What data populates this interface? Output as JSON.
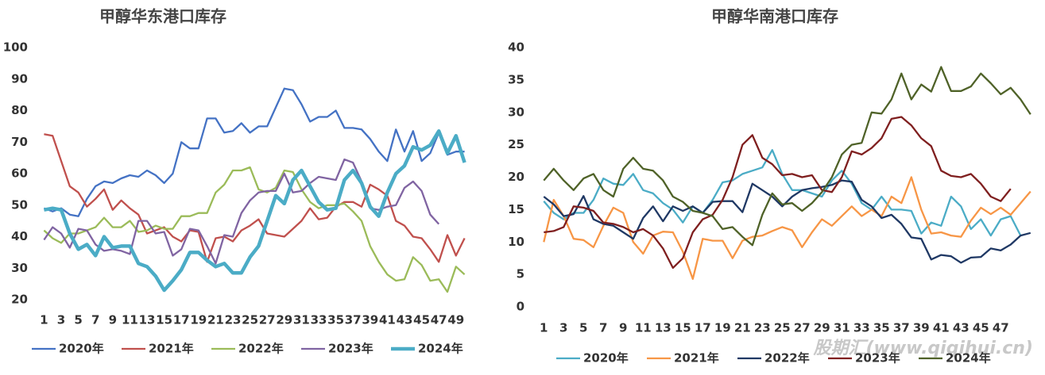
{
  "chart_data": [
    {
      "type": "line",
      "title": "甲醇华东港口库存",
      "x": [
        1,
        2,
        3,
        4,
        5,
        6,
        7,
        8,
        9,
        10,
        11,
        12,
        13,
        14,
        15,
        16,
        17,
        18,
        19,
        20,
        21,
        22,
        23,
        24,
        25,
        26,
        27,
        28,
        29,
        30,
        31,
        32,
        33,
        34,
        35,
        36,
        37,
        38,
        39,
        40,
        41,
        42,
        43,
        44,
        45,
        46,
        47,
        48,
        49,
        50
      ],
      "xlim": [
        0.5,
        50.5
      ],
      "xticks": [
        1,
        3,
        5,
        7,
        9,
        11,
        13,
        15,
        17,
        19,
        21,
        23,
        25,
        27,
        29,
        31,
        33,
        35,
        37,
        39,
        41,
        43,
        45,
        47,
        49
      ],
      "ylim": [
        20,
        100
      ],
      "yticks": [
        20,
        30,
        40,
        50,
        60,
        70,
        80,
        90,
        100
      ],
      "grid": false,
      "legend": "bottom",
      "series": [
        {
          "name": "2020年",
          "color": "#4472c4",
          "values": [
            49,
            48,
            49,
            47,
            46.5,
            52,
            56,
            57.5,
            57,
            58.5,
            59.5,
            59,
            61,
            59.5,
            57,
            60,
            70,
            68,
            68,
            77.5,
            77.5,
            73,
            73.5,
            76,
            73,
            75,
            75,
            81,
            87,
            86.5,
            82,
            76.5,
            78,
            78,
            80,
            74.5,
            74.5,
            74,
            71,
            67,
            64,
            74,
            67,
            73.5,
            64,
            66.5,
            73,
            66,
            67,
            67
          ]
        },
        {
          "name": "2021年",
          "color": "#c0504d",
          "values": [
            72.5,
            72,
            64,
            56,
            54,
            49.5,
            52,
            55,
            48.5,
            51.5,
            49,
            47,
            41,
            42,
            43,
            40,
            38.5,
            42,
            41.5,
            32,
            39.5,
            40,
            38.5,
            42,
            43.5,
            45.5,
            41,
            40.5,
            40,
            42.5,
            45,
            49,
            45.5,
            46,
            49.5,
            51,
            51,
            49.5,
            56.5,
            55,
            53,
            45,
            43.5,
            40,
            39.5,
            36,
            32,
            40.5,
            34,
            39.5
          ]
        },
        {
          "name": "2022年",
          "color": "#9bbb59",
          "values": [
            42,
            39.5,
            38,
            41,
            41,
            42,
            43,
            46,
            43,
            43,
            45,
            41.5,
            42,
            43.5,
            42.5,
            42.5,
            46.5,
            46.5,
            47.5,
            47.5,
            54,
            56.5,
            61,
            61,
            62,
            55,
            54,
            55.5,
            61,
            60.5,
            55,
            51,
            49,
            50,
            50,
            50.5,
            48,
            45,
            37,
            32,
            28,
            26,
            26.5,
            33.5,
            31,
            26,
            26.5,
            22.5,
            30.5,
            28
          ]
        },
        {
          "name": "2023年",
          "color": "#8064a2",
          "values": [
            39,
            43,
            41,
            36.5,
            42.5,
            42,
            37.5,
            35.5,
            36,
            35.5,
            34.5,
            45,
            45,
            41,
            41.5,
            34,
            36,
            42.5,
            42,
            37,
            31.5,
            40.5,
            40,
            47.5,
            51.5,
            54,
            54.5,
            54.5,
            60,
            54,
            54.5,
            57,
            59,
            58.5,
            58,
            64.5,
            63.5,
            57.5,
            49,
            48.5,
            49.5,
            50,
            55.5,
            57.5,
            54.5,
            47,
            44,
            null,
            null,
            null
          ]
        },
        {
          "name": "2024年",
          "color": "#4bacc6",
          "width": 4.5,
          "values": [
            48.5,
            49,
            48.5,
            41,
            36,
            37.5,
            34,
            40,
            36.5,
            37,
            37,
            31.5,
            30.5,
            27.5,
            23,
            26,
            29.5,
            35,
            35,
            32.5,
            30.5,
            31.5,
            28.5,
            28.5,
            33.5,
            37,
            45,
            53,
            50.5,
            58,
            61,
            56,
            51,
            48.5,
            49,
            58,
            61,
            57,
            49.5,
            46.5,
            54,
            60,
            62.5,
            68.5,
            67.5,
            69,
            73.5,
            66.5,
            72,
            63.5
          ]
        }
      ]
    },
    {
      "type": "line",
      "title": "甲醇华南港口库存",
      "x": [
        1,
        2,
        3,
        4,
        5,
        6,
        7,
        8,
        9,
        10,
        11,
        12,
        13,
        14,
        15,
        16,
        17,
        18,
        19,
        20,
        21,
        22,
        23,
        24,
        25,
        26,
        27,
        28,
        29,
        30,
        31,
        32,
        33,
        34,
        35,
        36,
        37,
        38,
        39,
        40,
        41,
        42,
        43,
        44,
        45,
        46,
        47,
        48,
        49,
        50
      ],
      "xlim": [
        0.5,
        50.5
      ],
      "xticks": [
        1,
        3,
        5,
        7,
        9,
        11,
        13,
        15,
        17,
        19,
        21,
        23,
        25,
        27,
        29,
        31,
        33,
        35,
        37,
        39,
        41,
        43,
        45,
        47
      ],
      "ylim": [
        0,
        40
      ],
      "yticks": [
        0,
        5,
        10,
        15,
        20,
        25,
        30,
        35,
        40
      ],
      "grid": false,
      "legend": "bottom",
      "series": [
        {
          "name": "2020年",
          "color": "#4bacc6",
          "values": [
            16.3,
            14.5,
            13.5,
            14.5,
            14.5,
            16.5,
            19.8,
            19,
            18.8,
            20.5,
            18,
            17.5,
            16,
            15,
            13,
            15.5,
            14.5,
            16.5,
            19.2,
            19.5,
            20.5,
            21,
            21.5,
            24.2,
            20.5,
            18,
            18,
            17.5,
            17,
            19.5,
            21,
            19,
            16,
            15,
            17,
            15,
            15,
            14.8,
            11.3,
            13,
            12.5,
            17,
            15.5,
            12,
            13.5,
            11,
            13.5,
            14,
            11,
            null
          ]
        },
        {
          "name": "2021年",
          "color": "#f79646",
          "values": [
            10,
            16.5,
            14,
            10.5,
            10.3,
            9.2,
            12.5,
            15.3,
            14.5,
            10,
            8.2,
            11,
            11.6,
            11.5,
            8.5,
            4.3,
            10.5,
            10.2,
            10.2,
            7.5,
            10.2,
            10.8,
            11,
            11.7,
            12.3,
            11.8,
            9.2,
            11.5,
            13.5,
            12.5,
            14,
            15.5,
            14,
            15,
            14,
            17,
            16,
            20,
            15,
            11.3,
            11.5,
            11,
            10.8,
            13.3,
            15.3,
            14.3,
            15.3,
            14.2,
            16,
            17.8
          ]
        },
        {
          "name": "2022年",
          "color": "#1f3864",
          "values": [
            17,
            15.8,
            14,
            14.3,
            17.1,
            13.5,
            12.8,
            12.5,
            11.5,
            10.5,
            13.7,
            15.5,
            13.2,
            15.5,
            14.8,
            15.5,
            14.5,
            16.2,
            16.3,
            16.3,
            14.6,
            19,
            18,
            17,
            15.5,
            17,
            18,
            18.3,
            18.5,
            18.8,
            19.5,
            19.3,
            16.5,
            15.5,
            13.7,
            14.2,
            12.8,
            10.7,
            10.5,
            7.3,
            8,
            7.8,
            6.8,
            7.6,
            7.7,
            9,
            8.7,
            9.6,
            11,
            11.4
          ]
        },
        {
          "name": "2023年",
          "color": "#7f1f1f",
          "values": [
            11.5,
            11.7,
            12.3,
            15.5,
            15.3,
            14.8,
            13,
            12.8,
            12.3,
            11.5,
            12,
            11,
            9,
            6,
            7.5,
            11.5,
            13.5,
            14.2,
            16.5,
            20,
            25,
            26.5,
            23,
            22,
            20.3,
            20.5,
            20,
            20.3,
            18,
            17.7,
            20,
            24,
            23.5,
            24.5,
            26,
            29,
            29.3,
            28,
            26,
            24.8,
            21,
            20.2,
            20,
            20.5,
            19,
            17,
            16.3,
            18.2,
            null,
            null
          ]
        },
        {
          "name": "2024年",
          "color": "#4f6228",
          "values": [
            19.5,
            21.3,
            19.5,
            18,
            19.8,
            20.5,
            18,
            17,
            21.3,
            23,
            21.3,
            21,
            19.5,
            17,
            16.2,
            14.8,
            14.5,
            14,
            12,
            12.3,
            10.8,
            9.5,
            14.2,
            17.5,
            15.8,
            16,
            14.8,
            16,
            17.7,
            20,
            23.5,
            25,
            25.3,
            30,
            29.8,
            32,
            36,
            32,
            34.3,
            33.2,
            37,
            33.3,
            33.3,
            34,
            36,
            34.5,
            32.8,
            33.8,
            32,
            29.7
          ]
        }
      ]
    }
  ],
  "watermark": "股期汇(www.qiqihui.cn)"
}
